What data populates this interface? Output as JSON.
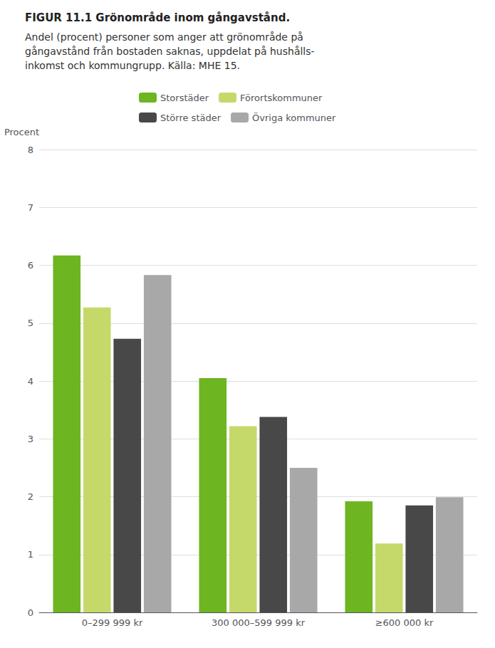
{
  "chart_data": {
    "type": "bar",
    "title": "FIGUR 11.1 Grönområde inom gångavstånd.",
    "subtitle": "Andel (procent) personer som anger att grönområde på\ngångavstånd från bostaden saknas, uppdelat på hushålls-\ninkomst och kommungrupp. Källa: MHE 15.",
    "ylabel": "Procent",
    "categories": [
      "0–299 999 kr",
      "300 000–599 999 kr",
      "≥600 000 kr"
    ],
    "series": [
      {
        "name": "Storstäder",
        "color": "#6db521",
        "values": [
          6.17,
          4.05,
          1.92
        ]
      },
      {
        "name": "Förortskommuner",
        "color": "#c5d96b",
        "values": [
          5.27,
          3.22,
          1.19
        ]
      },
      {
        "name": "Större städer",
        "color": "#484848",
        "values": [
          4.73,
          3.38,
          1.85
        ]
      },
      {
        "name": "Övriga kommuner",
        "color": "#a8a8a8",
        "values": [
          5.83,
          2.5,
          1.99
        ]
      }
    ],
    "ylim": [
      0,
      8
    ],
    "yticks": [
      0,
      1,
      2,
      3,
      4,
      5,
      6,
      7,
      8
    ],
    "grid": true,
    "legend": "top"
  }
}
